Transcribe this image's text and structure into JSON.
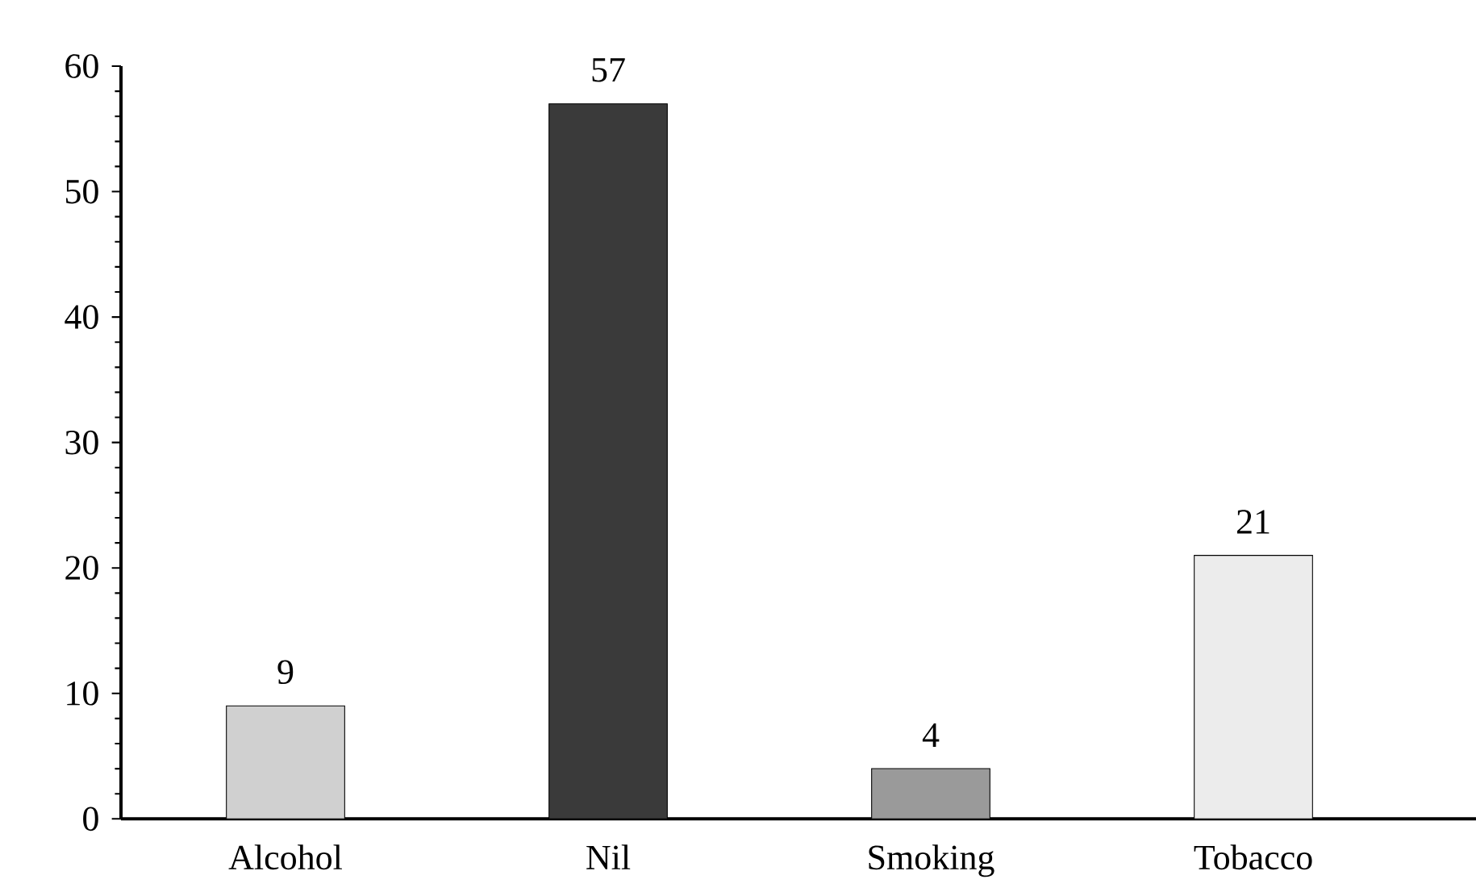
{
  "chart_data": {
    "type": "bar",
    "categories": [
      "Alcohol",
      "Nil",
      "Smoking",
      "Tobacco"
    ],
    "values": [
      9,
      57,
      4,
      21
    ],
    "colors": [
      "#d0d0d0",
      "#3a3a3a",
      "#9a9a9a",
      "#ececec"
    ],
    "ylim": [
      0,
      60
    ],
    "yticks": [
      0,
      10,
      20,
      30,
      40,
      50,
      60
    ],
    "data_labels": true,
    "grid": false
  }
}
